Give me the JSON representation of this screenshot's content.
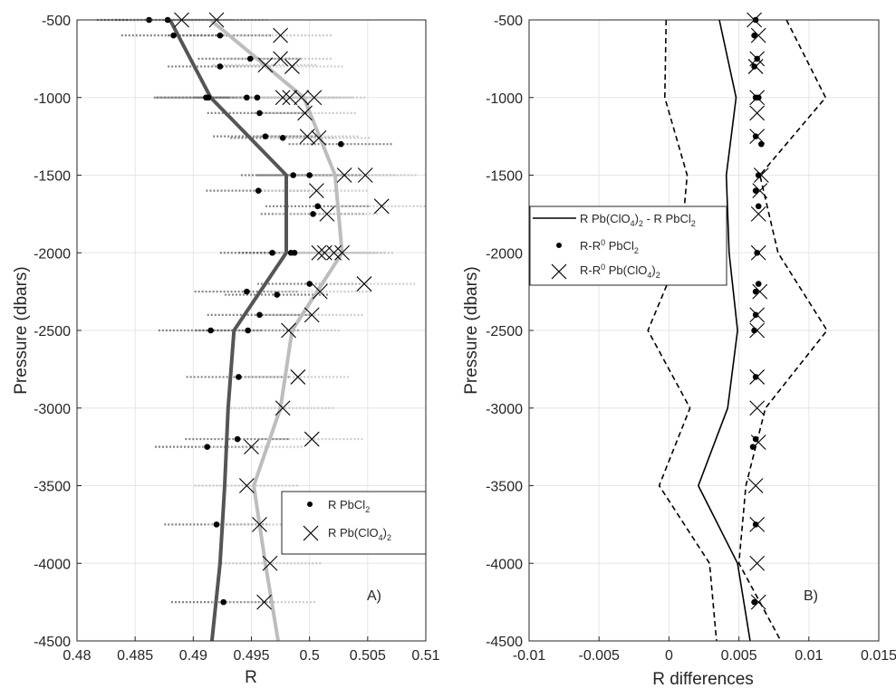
{
  "chart_data": [
    {
      "type": "scatter",
      "panel_label": "A)",
      "xlabel": "R",
      "ylabel": "Pressure (dbars)",
      "xlim": [
        0.48,
        0.51
      ],
      "ylim": [
        -4500,
        -500
      ],
      "x_ticks": [
        "0.48",
        "0.485",
        "0.49",
        "0.495",
        "0.5",
        "0.505",
        "0.51"
      ],
      "y_ticks": [
        "-500",
        "-1000",
        "-1500",
        "-2000",
        "-2500",
        "-3000",
        "-3500",
        "-4000",
        "-4500"
      ],
      "grid": true,
      "legend_position": "lower-right",
      "legend": {
        "pbcl2_prefix": "R PbCl",
        "pbcl2_sub": "2",
        "pbclo4_prefix": "R Pb(ClO",
        "pbclo4_sub1": "4",
        "pbclo4_mid": ")",
        "pbclo4_sub2": "2"
      },
      "series": [
        {
          "key": "pbcl2_points",
          "marker": "dot",
          "color": "#000000",
          "points": [
            {
              "y": -500,
              "x": 0.4862
            },
            {
              "y": -500,
              "x": 0.4878
            },
            {
              "y": -600,
              "x": 0.4883
            },
            {
              "y": -600,
              "x": 0.4923
            },
            {
              "y": -750,
              "x": 0.4949
            },
            {
              "y": -800,
              "x": 0.4923
            },
            {
              "y": -1000,
              "x": 0.4911
            },
            {
              "y": -1000,
              "x": 0.4913
            },
            {
              "y": -1000,
              "x": 0.4946
            },
            {
              "y": -1000,
              "x": 0.4955
            },
            {
              "y": -1100,
              "x": 0.4957
            },
            {
              "y": -1250,
              "x": 0.4962
            },
            {
              "y": -1260,
              "x": 0.4977
            },
            {
              "y": -1300,
              "x": 0.5027
            },
            {
              "y": -1500,
              "x": 0.4986
            },
            {
              "y": -1500,
              "x": 0.5
            },
            {
              "y": -1600,
              "x": 0.4956
            },
            {
              "y": -1700,
              "x": 0.5007
            },
            {
              "y": -1750,
              "x": 0.5003
            },
            {
              "y": -2000,
              "x": 0.4968
            },
            {
              "y": -2000,
              "x": 0.4984
            },
            {
              "y": -2000,
              "x": 0.4987
            },
            {
              "y": -2200,
              "x": 0.5
            },
            {
              "y": -2250,
              "x": 0.4946
            },
            {
              "y": -2270,
              "x": 0.4972
            },
            {
              "y": -2400,
              "x": 0.4957
            },
            {
              "y": -2500,
              "x": 0.4915
            },
            {
              "y": -2500,
              "x": 0.4947
            },
            {
              "y": -2800,
              "x": 0.4939
            },
            {
              "y": -3200,
              "x": 0.4938
            },
            {
              "y": -3250,
              "x": 0.4912
            },
            {
              "y": -3750,
              "x": 0.492
            },
            {
              "y": -4250,
              "x": 0.4926
            }
          ]
        },
        {
          "key": "pbclo4_points",
          "marker": "x",
          "color": "#000000",
          "points": [
            {
              "y": -500,
              "x": 0.489
            },
            {
              "y": -500,
              "x": 0.492
            },
            {
              "y": -600,
              "x": 0.4975
            },
            {
              "y": -750,
              "x": 0.4975
            },
            {
              "y": -790,
              "x": 0.4962
            },
            {
              "y": -800,
              "x": 0.4985
            },
            {
              "y": -1000,
              "x": 0.4977
            },
            {
              "y": -1000,
              "x": 0.4983
            },
            {
              "y": -1000,
              "x": 0.4993
            },
            {
              "y": -1000,
              "x": 0.5004
            },
            {
              "y": -1100,
              "x": 0.4996
            },
            {
              "y": -1250,
              "x": 0.4998
            },
            {
              "y": -1260,
              "x": 0.5008
            },
            {
              "y": -1500,
              "x": 0.503
            },
            {
              "y": -1500,
              "x": 0.5048
            },
            {
              "y": -1600,
              "x": 0.5006
            },
            {
              "y": -1700,
              "x": 0.5062
            },
            {
              "y": -1750,
              "x": 0.5015
            },
            {
              "y": -2000,
              "x": 0.5008
            },
            {
              "y": -2000,
              "x": 0.5013
            },
            {
              "y": -2000,
              "x": 0.5021
            },
            {
              "y": -2000,
              "x": 0.5028
            },
            {
              "y": -2200,
              "x": 0.5047
            },
            {
              "y": -2250,
              "x": 0.5009
            },
            {
              "y": -2400,
              "x": 0.5002
            },
            {
              "y": -2500,
              "x": 0.4982
            },
            {
              "y": -2800,
              "x": 0.499
            },
            {
              "y": -3000,
              "x": 0.4977
            },
            {
              "y": -3200,
              "x": 0.5002
            },
            {
              "y": -3250,
              "x": 0.495
            },
            {
              "y": -3500,
              "x": 0.4946
            },
            {
              "y": -3750,
              "x": 0.4957
            },
            {
              "y": -4000,
              "x": 0.4966
            },
            {
              "y": -4250,
              "x": 0.4961
            }
          ]
        },
        {
          "key": "pbcl2_mean_profile",
          "marker": "line",
          "color": "#555555",
          "points": [
            {
              "y": -500,
              "x": 0.488
            },
            {
              "y": -1000,
              "x": 0.4915
            },
            {
              "y": -1500,
              "x": 0.498
            },
            {
              "y": -2000,
              "x": 0.498
            },
            {
              "y": -2500,
              "x": 0.4935
            },
            {
              "y": -3000,
              "x": 0.493
            },
            {
              "y": -3500,
              "x": 0.4927
            },
            {
              "y": -4000,
              "x": 0.4923
            },
            {
              "y": -4500,
              "x": 0.4916
            }
          ]
        },
        {
          "key": "pbclo4_mean_profile",
          "marker": "line",
          "color": "#bdbdbd",
          "points": [
            {
              "y": -500,
              "x": 0.4915
            },
            {
              "y": -1000,
              "x": 0.4995
            },
            {
              "y": -1500,
              "x": 0.5022
            },
            {
              "y": -2000,
              "x": 0.5028
            },
            {
              "y": -2500,
              "x": 0.4985
            },
            {
              "y": -3000,
              "x": 0.4975
            },
            {
              "y": -3500,
              "x": 0.4952
            },
            {
              "y": -4000,
              "x": 0.4962
            },
            {
              "y": -4500,
              "x": 0.4973
            }
          ]
        }
      ]
    },
    {
      "type": "line",
      "panel_label": "B)",
      "xlabel": "R differences",
      "ylabel": "Pressure (dbars)",
      "xlim": [
        -0.01,
        0.015
      ],
      "ylim": [
        -4500,
        -500
      ],
      "x_ticks": [
        "-0.01",
        "-0.005",
        "0",
        "0.005",
        "0.01",
        "0.015"
      ],
      "y_ticks": [
        "-500",
        "-1000",
        "-1500",
        "-2000",
        "-2500",
        "-3000",
        "-3500",
        "-4000",
        "-4500"
      ],
      "grid": true,
      "legend_position": "upper-left",
      "legend": {
        "diff_prefix": "R Pb(ClO",
        "diff_sub1": "4",
        "diff_mid": ")",
        "diff_sub2": "2",
        "diff_tail": " - R PbCl",
        "diff_sub3": "2",
        "r0cl2_prefix": "R-R",
        "r0cl2_sup": "0",
        "r0cl2_tail": " PbCl",
        "r0cl2_sub": "2",
        "r0clo4_prefix": "R-R",
        "r0clo4_sup": "0",
        "r0clo4_tail": " Pb(ClO",
        "r0clo4_sub1": "4",
        "r0clo4_mid": ")",
        "r0clo4_sub2": "2"
      },
      "series": [
        {
          "key": "mean_difference",
          "marker": "line",
          "style": "solid",
          "color": "#000000",
          "points": [
            {
              "y": -500,
              "x": 0.0036
            },
            {
              "y": -1000,
              "x": 0.0048
            },
            {
              "y": -1500,
              "x": 0.0041
            },
            {
              "y": -2000,
              "x": 0.0043
            },
            {
              "y": -2500,
              "x": 0.0049
            },
            {
              "y": -3000,
              "x": 0.0042
            },
            {
              "y": -3500,
              "x": 0.0021
            },
            {
              "y": -4000,
              "x": 0.0049
            },
            {
              "y": -4500,
              "x": 0.0058
            }
          ]
        },
        {
          "key": "lower_bound",
          "marker": "line",
          "style": "dashed",
          "color": "#000000",
          "points": [
            {
              "y": -500,
              "x": -0.0002
            },
            {
              "y": -1000,
              "x": -0.0003
            },
            {
              "y": -1500,
              "x": 0.0013
            },
            {
              "y": -2000,
              "x": 0.0008
            },
            {
              "y": -2500,
              "x": -0.0015
            },
            {
              "y": -3000,
              "x": 0.0015
            },
            {
              "y": -3500,
              "x": -0.0007
            },
            {
              "y": -4000,
              "x": 0.0029
            },
            {
              "y": -4500,
              "x": 0.0034
            }
          ]
        },
        {
          "key": "upper_bound",
          "marker": "line",
          "style": "dashed",
          "color": "#000000",
          "points": [
            {
              "y": -500,
              "x": 0.0084
            },
            {
              "y": -1000,
              "x": 0.0112
            },
            {
              "y": -1500,
              "x": 0.0065
            },
            {
              "y": -2000,
              "x": 0.0078
            },
            {
              "y": -2500,
              "x": 0.0113
            },
            {
              "y": -3000,
              "x": 0.0069
            },
            {
              "y": -3500,
              "x": 0.0055
            },
            {
              "y": -4000,
              "x": 0.005
            },
            {
              "y": -4500,
              "x": 0.008
            }
          ]
        },
        {
          "key": "r0_pbcl2_points",
          "marker": "dot",
          "color": "#000000",
          "points": [
            {
              "y": -500,
              "x": 0.0062
            },
            {
              "y": -600,
              "x": 0.0061
            },
            {
              "y": -750,
              "x": 0.0063
            },
            {
              "y": -800,
              "x": 0.0061
            },
            {
              "y": -1000,
              "x": 0.0062
            },
            {
              "y": -1000,
              "x": 0.0064
            },
            {
              "y": -1250,
              "x": 0.0062
            },
            {
              "y": -1300,
              "x": 0.0066
            },
            {
              "y": -1500,
              "x": 0.0064
            },
            {
              "y": -1600,
              "x": 0.0062
            },
            {
              "y": -1700,
              "x": 0.0064
            },
            {
              "y": -2000,
              "x": 0.0063
            },
            {
              "y": -2200,
              "x": 0.0064
            },
            {
              "y": -2250,
              "x": 0.0062
            },
            {
              "y": -2400,
              "x": 0.0062
            },
            {
              "y": -2500,
              "x": 0.0061
            },
            {
              "y": -2800,
              "x": 0.0062
            },
            {
              "y": -3200,
              "x": 0.0062
            },
            {
              "y": -3250,
              "x": 0.006
            },
            {
              "y": -3750,
              "x": 0.0062
            },
            {
              "y": -4250,
              "x": 0.0061
            }
          ]
        },
        {
          "key": "r0_pbclo4_points",
          "marker": "x",
          "color": "#000000",
          "points": [
            {
              "y": -500,
              "x": 0.0061
            },
            {
              "y": -600,
              "x": 0.0064
            },
            {
              "y": -750,
              "x": 0.0063
            },
            {
              "y": -800,
              "x": 0.0062
            },
            {
              "y": -1000,
              "x": 0.0063
            },
            {
              "y": -1100,
              "x": 0.0063
            },
            {
              "y": -1250,
              "x": 0.0063
            },
            {
              "y": -1500,
              "x": 0.0066
            },
            {
              "y": -1600,
              "x": 0.0065
            },
            {
              "y": -1750,
              "x": 0.0064
            },
            {
              "y": -2000,
              "x": 0.0064
            },
            {
              "y": -2250,
              "x": 0.0065
            },
            {
              "y": -2400,
              "x": 0.0063
            },
            {
              "y": -2500,
              "x": 0.0063
            },
            {
              "y": -2800,
              "x": 0.0063
            },
            {
              "y": -3000,
              "x": 0.0063
            },
            {
              "y": -3220,
              "x": 0.0064
            },
            {
              "y": -3500,
              "x": 0.0062
            },
            {
              "y": -3750,
              "x": 0.0063
            },
            {
              "y": -4000,
              "x": 0.0063
            },
            {
              "y": -4250,
              "x": 0.0064
            }
          ]
        }
      ]
    }
  ]
}
